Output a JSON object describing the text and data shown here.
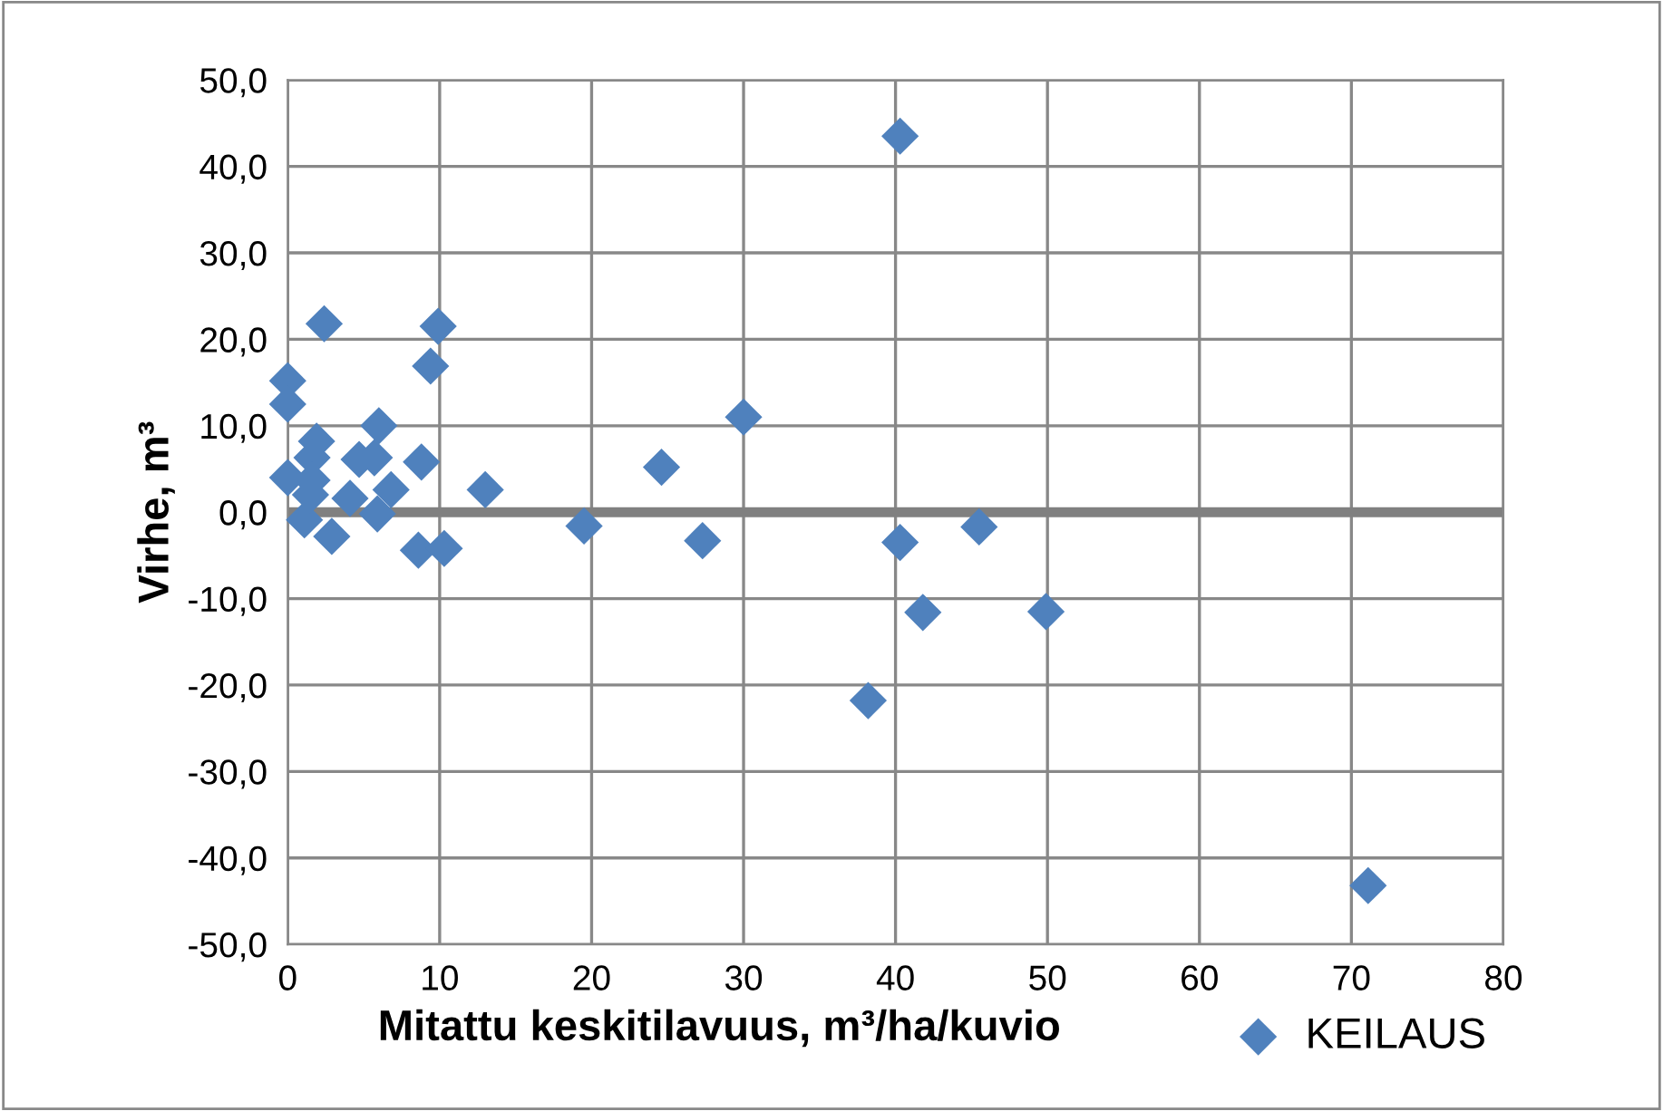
{
  "chart_data": {
    "type": "scatter",
    "xlabel": "Mitattu keskitilavuus, m³/ha/kuvio",
    "ylabel": "Virhe, m³",
    "xlim": [
      0,
      80
    ],
    "xticks": [
      0,
      10,
      20,
      30,
      40,
      50,
      60,
      70,
      80
    ],
    "ylim": [
      -50,
      50
    ],
    "yticks": [
      {
        "value": -50,
        "label": "-50,0"
      },
      {
        "value": -40,
        "label": "-40,0"
      },
      {
        "value": -30,
        "label": "-30,0"
      },
      {
        "value": -20,
        "label": "-20,0"
      },
      {
        "value": -10,
        "label": "-10,0"
      },
      {
        "value": 0,
        "label": "0,0"
      },
      {
        "value": 10,
        "label": "10,0"
      },
      {
        "value": 20,
        "label": "20,0"
      },
      {
        "value": 30,
        "label": "30,0"
      },
      {
        "value": 40,
        "label": "40,0"
      },
      {
        "value": 50,
        "label": "50,0"
      }
    ],
    "grid": true,
    "legend": "bottom right",
    "marker": "diamond",
    "ref_lines": [
      {
        "axis": "y",
        "value": 0,
        "color": "#808080"
      }
    ],
    "series": [
      {
        "name": "KEILAUS",
        "color": "#4f81bd",
        "x": [
          40.3,
          71.1,
          2.4,
          9.9,
          9.4,
          0,
          0,
          0,
          6.0,
          1.9,
          4.7,
          5.7,
          8.8,
          24.6,
          6.8,
          4.1,
          13.0,
          5.9,
          2.9,
          19.5,
          27.3,
          8.6,
          10.3,
          1.1,
          1.6,
          1.6,
          1.5,
          30.0,
          40.3,
          45.5,
          41.8,
          49.9,
          38.2
        ],
        "values": [
          43.5,
          -43.2,
          21.8,
          21.5,
          16.9,
          15.2,
          12.5,
          4,
          10.0,
          8.2,
          6.1,
          6.3,
          5.8,
          5.2,
          2.6,
          1.6,
          2.6,
          -0.2,
          -2.8,
          -1.6,
          -3.3,
          -4.4,
          -4.2,
          -0.9,
          6.3,
          3.7,
          2,
          11.0,
          -3.5,
          -1.7,
          -11.6,
          -11.5,
          -21.8
        ]
      }
    ]
  }
}
